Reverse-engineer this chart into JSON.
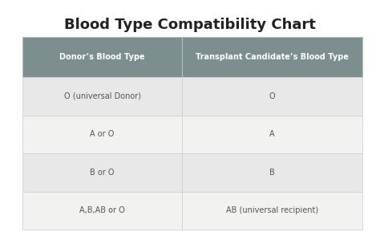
{
  "title": "Blood Type Compatibility Chart",
  "title_fontsize": 13,
  "col_headers": [
    "Donor’s Blood Type",
    "Transplant Candidate’s Blood Type"
  ],
  "rows": [
    [
      "O (universal Donor)",
      "O"
    ],
    [
      "A or O",
      "A"
    ],
    [
      "B or O",
      "B"
    ],
    [
      "A,B,AB or O",
      "AB (universal recipient)"
    ]
  ],
  "header_bg": "#7d8e8f",
  "header_text_color": "#ffffff",
  "row_bg_odd": "#e8e8e8",
  "row_bg_even": "#f2f2f0",
  "row_text_color": "#555555",
  "background_color": "#ffffff",
  "header_fontsize": 7,
  "row_fontsize": 7,
  "figsize": [
    4.74,
    2.94
  ],
  "dpi": 100
}
